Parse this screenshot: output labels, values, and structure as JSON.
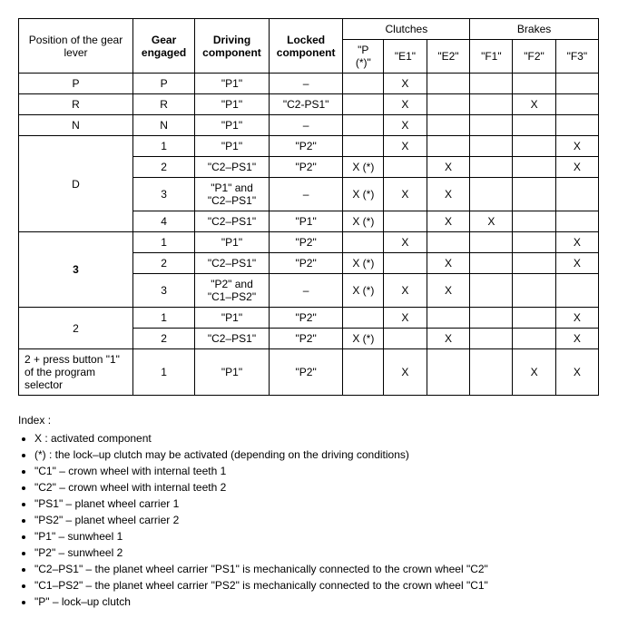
{
  "table": {
    "headers": {
      "position": "Position of the gear lever",
      "gear": "Gear engaged",
      "driving": "Driving component",
      "locked": "Locked component",
      "clutches": "Clutches",
      "brakes": "Brakes",
      "pclutch": "\"P (*)\"",
      "e1": "\"E1\"",
      "e2": "\"E2\"",
      "f1": "\"F1\"",
      "f2": "\"F2\"",
      "f3": "\"F3\""
    },
    "rows": [
      {
        "pos": "P",
        "rowspan": 1,
        "gear": "P",
        "drv": "\"P1\"",
        "lock": "–",
        "p": "",
        "e1": "X",
        "e2": "",
        "f1": "",
        "f2": "",
        "f3": ""
      },
      {
        "pos": "R",
        "rowspan": 1,
        "gear": "R",
        "drv": "\"P1\"",
        "lock": "\"C2-PS1\"",
        "p": "",
        "e1": "X",
        "e2": "",
        "f1": "",
        "f2": "X",
        "f3": ""
      },
      {
        "pos": "N",
        "rowspan": 1,
        "gear": "N",
        "drv": "\"P1\"",
        "lock": "–",
        "p": "",
        "e1": "X",
        "e2": "",
        "f1": "",
        "f2": "",
        "f3": ""
      },
      {
        "pos": "D",
        "rowspan": 4,
        "gear": "1",
        "drv": "\"P1\"",
        "lock": "\"P2\"",
        "p": "",
        "e1": "X",
        "e2": "",
        "f1": "",
        "f2": "",
        "f3": "X"
      },
      {
        "gear": "2",
        "drv": "\"C2–PS1\"",
        "lock": "\"P2\"",
        "p": "X (*)",
        "e1": "",
        "e2": "X",
        "f1": "",
        "f2": "",
        "f3": "X"
      },
      {
        "gear": "3",
        "drv": "\"P1\" and \"C2–PS1\"",
        "lock": "–",
        "p": "X (*)",
        "e1": "X",
        "e2": "X",
        "f1": "",
        "f2": "",
        "f3": ""
      },
      {
        "gear": "4",
        "drv": "\"C2–PS1\"",
        "lock": "\"P1\"",
        "p": "X (*)",
        "e1": "",
        "e2": "X",
        "f1": "X",
        "f2": "",
        "f3": ""
      },
      {
        "pos": "3",
        "pos_bold": true,
        "rowspan": 3,
        "gear": "1",
        "drv": "\"P1\"",
        "lock": "\"P2\"",
        "p": "",
        "e1": "X",
        "e2": "",
        "f1": "",
        "f2": "",
        "f3": "X"
      },
      {
        "gear": "2",
        "drv": "\"C2–PS1\"",
        "lock": "\"P2\"",
        "p": "X (*)",
        "e1": "",
        "e2": "X",
        "f1": "",
        "f2": "",
        "f3": "X"
      },
      {
        "gear": "3",
        "drv": "\"P2\" and \"C1–PS2\"",
        "lock": "–",
        "p": "X (*)",
        "e1": "X",
        "e2": "X",
        "f1": "",
        "f2": "",
        "f3": ""
      },
      {
        "pos": "2",
        "rowspan": 2,
        "gear": "1",
        "drv": "\"P1\"",
        "lock": "\"P2\"",
        "p": "",
        "e1": "X",
        "e2": "",
        "f1": "",
        "f2": "",
        "f3": "X"
      },
      {
        "gear": "2",
        "drv": "\"C2–PS1\"",
        "lock": "\"P2\"",
        "p": "X (*)",
        "e1": "",
        "e2": "X",
        "f1": "",
        "f2": "",
        "f3": "X"
      },
      {
        "pos": "2 + press button \"1\" of the program selector",
        "pos_left": true,
        "rowspan": 1,
        "gear": "1",
        "drv": "\"P1\"",
        "lock": "\"P2\"",
        "p": "",
        "e1": "X",
        "e2": "",
        "f1": "",
        "f2": "X",
        "f3": "X"
      }
    ]
  },
  "index": {
    "title": "Index :",
    "items": [
      "X : activated component",
      "(*) : the lock–up clutch may be activated (depending on the driving conditions)",
      "\"C1\" – crown wheel with internal teeth 1",
      "\"C2\" – crown wheel with internal teeth 2",
      "\"PS1\" – planet wheel carrier 1",
      "\"PS2\" – planet wheel carrier 2",
      "\"P1\" – sunwheel 1",
      "\"P2\" – sunwheel 2",
      "\"C2–PS1\" – the planet wheel carrier \"PS1\" is mechanically connected to the crown wheel \"C2\"",
      "\"C1–PS2\" – the planet wheel carrier \"PS2\" is mechanically connected to the crown wheel \"C1\"",
      "\"P\" – lock–up clutch"
    ]
  }
}
